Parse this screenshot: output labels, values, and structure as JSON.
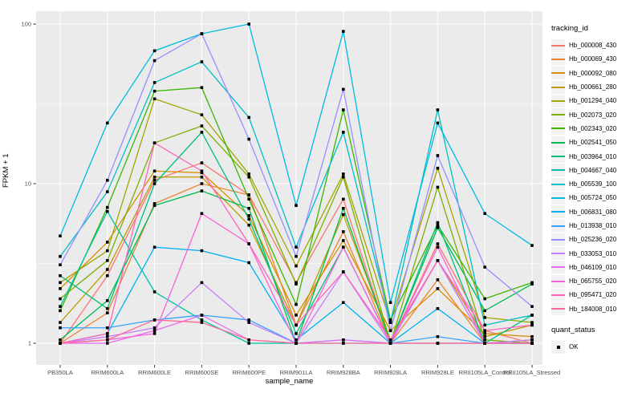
{
  "chart_data": {
    "type": "line",
    "title": "",
    "xlabel": "sample_name",
    "ylabel": "FPKM + 1",
    "y_scale": "log10",
    "y_ticks": [
      1,
      10,
      100
    ],
    "y_minor_ticks": [
      3.162,
      31.62
    ],
    "ylim": [
      0.73,
      120
    ],
    "grid": "on",
    "legend_position": "right",
    "legend": {
      "series_title": "tracking_id",
      "shape_title": "quant_status",
      "shape_label": "OK"
    },
    "categories": [
      "PB350LA",
      "RRIM600LA",
      "RRIM600LE",
      "RRIM600SE",
      "RRIM600PE",
      "RRIM901LA",
      "RRIM928BA",
      "RRIM928LA",
      "RRIM928LE",
      "RRII105LA_Control",
      "RRII105LA_Stressed"
    ],
    "series": [
      {
        "name": "Hb_000008_430",
        "color": "#F8766D",
        "values": [
          1.0,
          2.65,
          10.5,
          13.5,
          8.5,
          2.4,
          8.0,
          1.0,
          4.2,
          1.2,
          1.0
        ]
      },
      {
        "name": "Hb_000069_430",
        "color": "#EA8331",
        "values": [
          1.0,
          1.55,
          7.5,
          10.0,
          8.5,
          1.3,
          5.0,
          1.0,
          2.5,
          1.0,
          1.05
        ]
      },
      {
        "name": "Hb_000092_080",
        "color": "#D89000",
        "values": [
          2.2,
          4.3,
          12.0,
          11.7,
          6.3,
          1.5,
          4.4,
          1.2,
          2.2,
          1.15,
          1.1
        ]
      },
      {
        "name": "Hb_000661_280",
        "color": "#C09B00",
        "values": [
          1.35,
          2.9,
          11.0,
          11.0,
          5.5,
          1.3,
          6.4,
          1.05,
          3.3,
          1.1,
          1.3
        ]
      },
      {
        "name": "Hb_001294_040",
        "color": "#A3A500",
        "values": [
          2.4,
          3.8,
          34.0,
          27.0,
          11.5,
          3.05,
          11.5,
          1.35,
          12.5,
          1.45,
          1.35
        ]
      },
      {
        "name": "Hb_002073_020",
        "color": "#7CAE00",
        "values": [
          1.9,
          3.3,
          18.0,
          23.0,
          11.0,
          2.35,
          11.0,
          1.0,
          9.5,
          1.05,
          1.0
        ]
      },
      {
        "name": "Hb_002343_020",
        "color": "#39B600",
        "values": [
          1.6,
          7.1,
          38.0,
          40.0,
          8.0,
          1.75,
          29.0,
          1.4,
          5.5,
          1.9,
          2.4
        ]
      },
      {
        "name": "Hb_002541_050",
        "color": "#00BB4E",
        "values": [
          1.05,
          1.85,
          7.3,
          9.0,
          7.0,
          1.0,
          7.0,
          1.0,
          5.3,
          1.6,
          2.35
        ]
      },
      {
        "name": "Hb_003964_010",
        "color": "#00BF7D",
        "values": [
          2.65,
          1.65,
          10.0,
          21.0,
          6.0,
          1.15,
          4.0,
          1.0,
          5.7,
          1.0,
          1.5
        ]
      },
      {
        "name": "Hb_004667_040",
        "color": "#00C1A3",
        "values": [
          1.7,
          6.7,
          2.1,
          1.4,
          1.0,
          1.0,
          1.0,
          1.0,
          1.0,
          1.0,
          1.0
        ]
      },
      {
        "name": "Hb_005539_100",
        "color": "#00BFC4",
        "values": [
          3.5,
          8.9,
          43.0,
          58.0,
          26.0,
          4.0,
          21.0,
          1.35,
          29.0,
          1.3,
          1.5
        ]
      },
      {
        "name": "Hb_005724_050",
        "color": "#00BAE0",
        "values": [
          4.7,
          24.0,
          68.0,
          87.0,
          100.0,
          7.3,
          90.0,
          1.8,
          24.0,
          6.5,
          4.1
        ]
      },
      {
        "name": "Hb_006831_080",
        "color": "#00B0F6",
        "values": [
          1.0,
          1.15,
          4.0,
          3.8,
          3.2,
          1.05,
          1.8,
          1.0,
          1.65,
          1.0,
          1.0
        ]
      },
      {
        "name": "Hb_013938_010",
        "color": "#35A2FF",
        "values": [
          1.25,
          1.25,
          1.4,
          1.5,
          1.4,
          1.0,
          1.05,
          1.0,
          1.1,
          1.0,
          1.0
        ]
      },
      {
        "name": "Hb_025236_020",
        "color": "#9590FF",
        "values": [
          3.1,
          10.5,
          59.0,
          87.0,
          19.0,
          3.5,
          39.0,
          1.2,
          15.0,
          3.0,
          1.7
        ]
      },
      {
        "name": "Hb_033053_010",
        "color": "#C77CFF",
        "values": [
          1.0,
          1.1,
          1.25,
          2.4,
          1.35,
          1.0,
          2.8,
          1.0,
          3.3,
          1.0,
          1.05
        ]
      },
      {
        "name": "Hb_046109_010",
        "color": "#E76BF3",
        "values": [
          1.0,
          1.0,
          1.2,
          1.5,
          1.05,
          1.0,
          1.05,
          1.0,
          1.0,
          1.0,
          1.0
        ]
      },
      {
        "name": "Hb_065755_020",
        "color": "#FA62DB",
        "values": [
          1.0,
          1.05,
          1.15,
          6.5,
          4.2,
          1.0,
          4.0,
          1.0,
          4.0,
          1.0,
          1.0
        ]
      },
      {
        "name": "Hb_095471_020",
        "color": "#FF62BC",
        "values": [
          1.0,
          1.15,
          18.0,
          12.0,
          4.2,
          1.3,
          2.8,
          1.05,
          3.3,
          1.2,
          1.3
        ]
      },
      {
        "name": "Hb_184008_010",
        "color": "#FF6A98",
        "values": [
          1.0,
          1.05,
          1.4,
          1.35,
          1.05,
          1.0,
          1.0,
          1.0,
          1.0,
          1.0,
          1.0
        ]
      }
    ],
    "colors": {
      "panel_bg": "#EBEBEB",
      "grid_major": "#FFFFFF",
      "grid_minor": "#FFFFFF",
      "axis_text": "#4D4D4D",
      "tick_mark": "#333333",
      "point": "#000000",
      "legend_key_bg": "#F2F2F2"
    }
  }
}
